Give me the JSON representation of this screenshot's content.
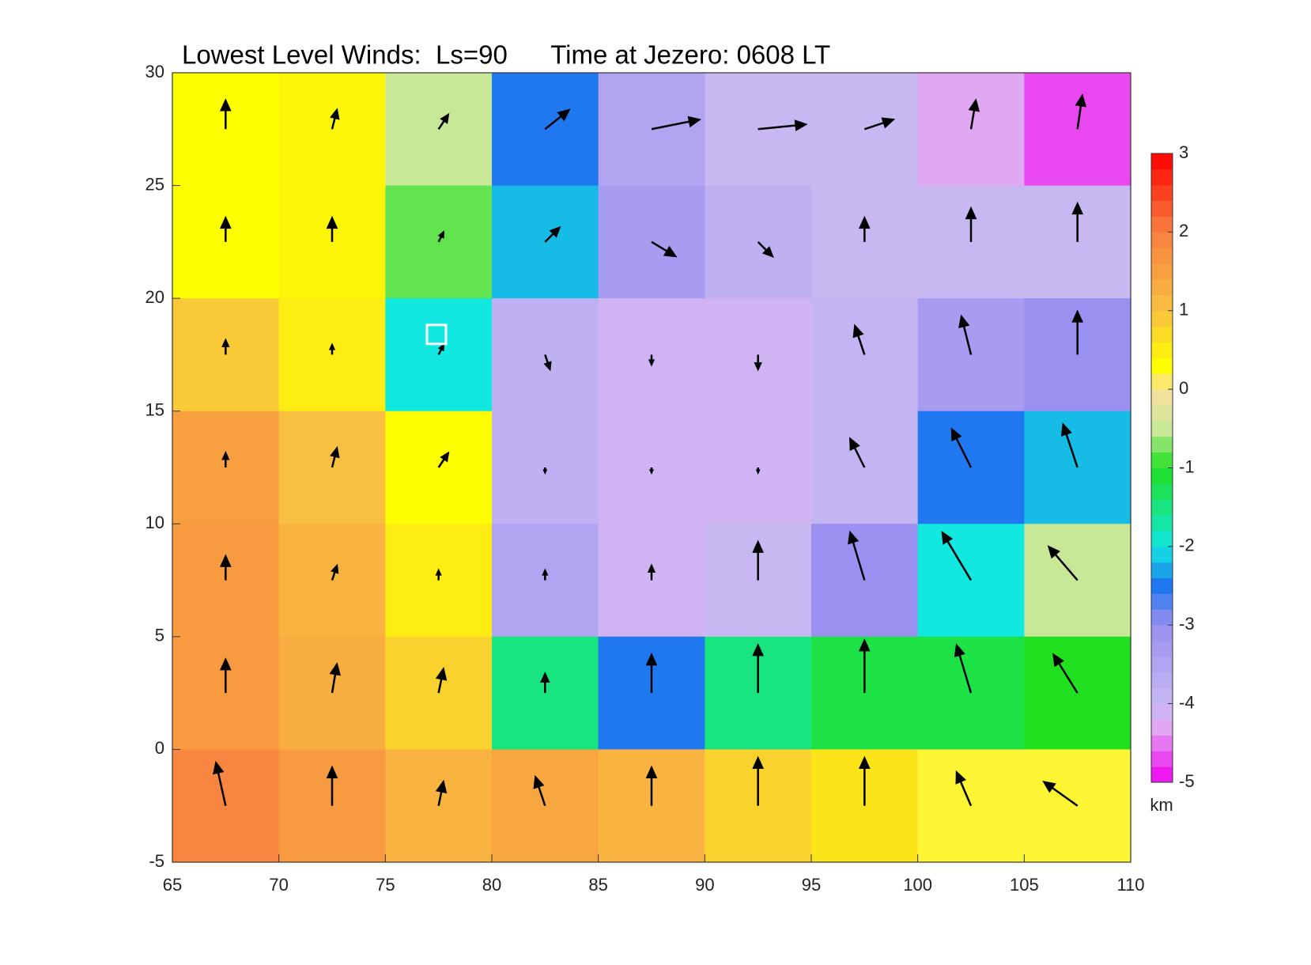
{
  "chart_data": {
    "type": "contour",
    "title": "Lowest Level Winds:  Ls=90      Time at Jezero: 0608 LT",
    "xlim": [
      65,
      110
    ],
    "xticks": [
      65,
      70,
      75,
      80,
      85,
      90,
      95,
      100,
      105,
      110
    ],
    "ylim": [
      -5,
      30
    ],
    "yticks": [
      -5,
      0,
      5,
      10,
      15,
      20,
      25,
      30
    ],
    "x": [
      67.5,
      72.5,
      77.5,
      82.5,
      87.5,
      92.5,
      97.5,
      102.5,
      107.5
    ],
    "y": [
      27.5,
      22.5,
      17.5,
      12.5,
      7.5,
      2.5,
      -2.5
    ],
    "z": [
      [
        0.3,
        0.4,
        -0.5,
        -2.5,
        -3.5,
        -4,
        -4,
        -4.3,
        -4.7
      ],
      [
        0.3,
        0.4,
        -0.8,
        -2.2,
        -3.3,
        -3.8,
        -4,
        -4,
        -4
      ],
      [
        0.9,
        0.5,
        -2,
        -3.8,
        -4.1,
        -4.1,
        -3.9,
        -3.3,
        -3
      ],
      [
        1.5,
        1.0,
        0.3,
        -3.8,
        -4.1,
        -4.1,
        -3.9,
        -2.5,
        -2.2
      ],
      [
        1.6,
        1.2,
        0.5,
        -3.5,
        -4.1,
        -4.0,
        -3.0,
        -2.0,
        -0.5
      ],
      [
        1.6,
        1.3,
        0.8,
        -1.5,
        -2.5,
        -1.5,
        -1.2,
        -1.2,
        -1.0
      ],
      [
        1.9,
        1.6,
        1.2,
        1.4,
        1.2,
        0.8,
        0.6,
        0.2,
        0.2
      ]
    ],
    "u": [
      [
        0,
        0.1,
        0.2,
        0.5,
        1,
        1,
        0.6,
        0.1,
        0.1
      ],
      [
        0,
        0,
        0.1,
        0.3,
        0.5,
        0.3,
        0,
        0,
        0
      ],
      [
        0,
        0,
        0.1,
        0.1,
        0,
        0,
        -0.2,
        -0.2,
        0
      ],
      [
        0,
        0.1,
        0.2,
        0,
        0,
        0,
        -0.3,
        -0.4,
        -0.3
      ],
      [
        0,
        0.1,
        0,
        0,
        0,
        0,
        -0.3,
        -0.6,
        -0.6
      ],
      [
        0,
        0.1,
        0.1,
        0,
        0,
        0,
        0,
        -0.3,
        -0.5
      ],
      [
        -0.2,
        0,
        0.1,
        -0.2,
        0,
        0,
        0,
        -0.3,
        -0.7
      ]
    ],
    "v": [
      [
        0.6,
        0.4,
        0.3,
        0.4,
        0.2,
        0.1,
        0.2,
        0.6,
        0.7
      ],
      [
        0.5,
        0.5,
        0.2,
        0.3,
        -0.3,
        -0.3,
        0.5,
        0.7,
        0.8
      ],
      [
        0.3,
        0.2,
        0.2,
        -0.3,
        -0.2,
        -0.3,
        0.6,
        0.8,
        0.9
      ],
      [
        0.3,
        0.4,
        0.3,
        -0.1,
        -0.1,
        -0.1,
        0.6,
        0.8,
        0.9
      ],
      [
        0.5,
        0.3,
        0.2,
        0.2,
        0.3,
        0.8,
        1.0,
        1.0,
        0.7
      ],
      [
        0.7,
        0.6,
        0.5,
        0.4,
        0.8,
        1.0,
        1.1,
        1.0,
        0.8
      ],
      [
        0.9,
        0.8,
        0.5,
        0.6,
        0.8,
        1.0,
        1.0,
        0.7,
        0.5
      ]
    ],
    "marker": [
      77.4,
      18.4
    ],
    "colorbar": {
      "label": "km",
      "lim": [
        -5,
        3
      ],
      "ticks": [
        -5,
        -4,
        -3,
        -2,
        -1,
        0,
        1,
        2,
        3
      ],
      "colormap": [
        [
          -5,
          "#f000f0"
        ],
        [
          -4.3,
          "#e0a8f2"
        ],
        [
          -4,
          "#c8b8f2"
        ],
        [
          -3,
          "#9a90f0"
        ],
        [
          -2.5,
          "#2078f0"
        ],
        [
          -2,
          "#10e8e0"
        ],
        [
          -1,
          "#20e020"
        ],
        [
          -0.5,
          "#c8e898"
        ],
        [
          0,
          "#fbe0a0"
        ],
        [
          0.3,
          "#ffff00"
        ],
        [
          1,
          "#f8c040"
        ],
        [
          2,
          "#f88040"
        ],
        [
          3,
          "#ff0000"
        ]
      ]
    }
  }
}
